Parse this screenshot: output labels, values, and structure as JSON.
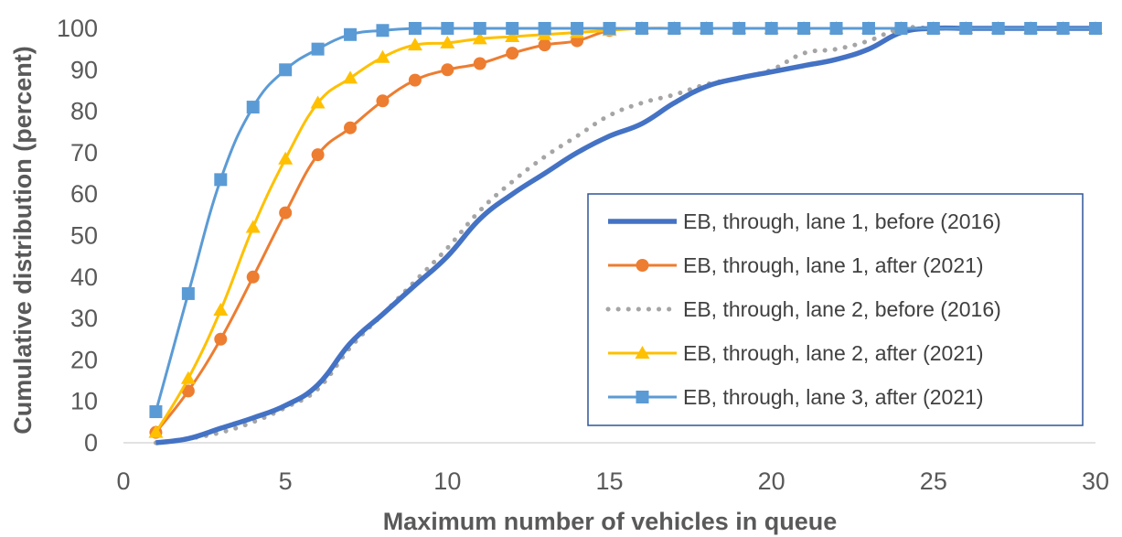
{
  "chart_data": {
    "type": "line",
    "title": "",
    "xlabel": "Maximum number of vehicles in queue",
    "ylabel": "Cumulative distribution (percent)",
    "xlim": [
      0,
      30
    ],
    "ylim": [
      0,
      100
    ],
    "xticks": [
      "0",
      "5",
      "10",
      "15",
      "20",
      "25",
      "30"
    ],
    "yticks": [
      "0",
      "10",
      "20",
      "30",
      "40",
      "50",
      "60",
      "70",
      "80",
      "90",
      "100"
    ],
    "grid": false,
    "legend_position": "right",
    "series": [
      {
        "name": "EB, through, lane 1, before (2016)",
        "color": "#4472C4",
        "style": "thick-solid-no-markers",
        "x": [
          1,
          2,
          3,
          4,
          5,
          6,
          7,
          8,
          9,
          10,
          11,
          12,
          13,
          14,
          15,
          16,
          17,
          18,
          19,
          20,
          21,
          22,
          23,
          24,
          25,
          26,
          27,
          28,
          29,
          30
        ],
        "values": [
          0,
          1,
          3.5,
          6,
          9,
          14,
          24,
          31,
          38,
          45,
          54,
          60,
          65,
          70,
          74,
          77,
          82,
          86,
          88,
          89.5,
          91,
          92.5,
          95,
          99,
          100,
          100,
          100,
          100,
          100,
          100
        ]
      },
      {
        "name": "EB, through, lane 1, after (2021)",
        "color": "#ED7D31",
        "style": "circle-markers",
        "x": [
          1,
          2,
          3,
          4,
          5,
          6,
          7,
          8,
          9,
          10,
          11,
          12,
          13,
          14,
          15,
          16,
          17,
          18,
          19,
          20,
          21,
          22,
          23,
          24,
          25,
          26,
          27,
          28,
          29,
          30
        ],
        "values": [
          2.5,
          12.5,
          25,
          40,
          55.5,
          69.5,
          76,
          82.5,
          87.5,
          90,
          91.5,
          94,
          96,
          97,
          99.5,
          100,
          100,
          100,
          100,
          100,
          100,
          100,
          100,
          100,
          100,
          100,
          100,
          100,
          100,
          100
        ]
      },
      {
        "name": "EB, through, lane 2, before (2016)",
        "color": "#A5A5A5",
        "style": "dotted",
        "x": [
          1,
          2,
          3,
          4,
          5,
          6,
          7,
          8,
          9,
          10,
          11,
          12,
          13,
          14,
          15,
          16,
          17,
          18,
          19,
          20,
          21,
          22,
          23,
          24,
          25,
          26,
          27,
          28,
          29,
          30
        ],
        "values": [
          0,
          1,
          2.5,
          5,
          8.5,
          13,
          23,
          31,
          39,
          47,
          56,
          63,
          69,
          74,
          79,
          82,
          84,
          86.5,
          88,
          90,
          94,
          95,
          97,
          100,
          100,
          100,
          100,
          100,
          100,
          100
        ]
      },
      {
        "name": "EB, through, lane 2, after (2021)",
        "color": "#FFC000",
        "style": "triangle-markers",
        "x": [
          1,
          2,
          3,
          4,
          5,
          6,
          7,
          8,
          9,
          10,
          11,
          12,
          13,
          14,
          15,
          16,
          17,
          18,
          19,
          20,
          21,
          22,
          23,
          24,
          25,
          26,
          27,
          28,
          29,
          30
        ],
        "values": [
          2.5,
          15.5,
          32,
          52,
          68.5,
          82,
          88,
          93,
          96,
          96.5,
          97.5,
          98,
          98.5,
          99,
          99.5,
          100,
          100,
          100,
          100,
          100,
          100,
          100,
          100,
          100,
          100,
          100,
          100,
          100,
          100,
          100
        ]
      },
      {
        "name": "EB, through, lane 3, after (2021)",
        "color": "#5B9BD5",
        "style": "square-markers",
        "x": [
          1,
          2,
          3,
          4,
          5,
          6,
          7,
          8,
          9,
          10,
          11,
          12,
          13,
          14,
          15,
          16,
          17,
          18,
          19,
          20,
          21,
          22,
          23,
          24,
          25,
          26,
          27,
          28,
          29,
          30
        ],
        "values": [
          7.5,
          36,
          63.5,
          81,
          90,
          95,
          98.5,
          99.5,
          100,
          100,
          100,
          100,
          100,
          100,
          100,
          100,
          100,
          100,
          100,
          100,
          100,
          100,
          100,
          100,
          100,
          100,
          100,
          100,
          100,
          100
        ]
      }
    ]
  }
}
